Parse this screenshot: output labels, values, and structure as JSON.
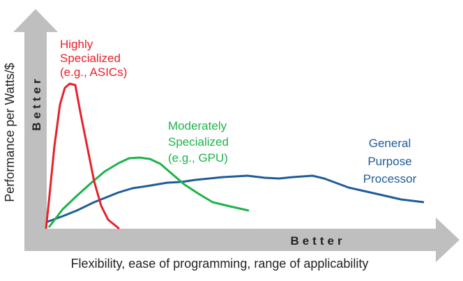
{
  "axes": {
    "y_label": "Performance per Watts/$",
    "x_label": "Flexibility, ease of programming, range of applicability",
    "y_better": "Better",
    "x_better": "Better",
    "arrow_color": "#bfbfbf"
  },
  "series": [
    {
      "name": "highly",
      "lines": [
        "Highly",
        "Specialized",
        "(e.g., ASICs)"
      ],
      "color": "#e8202a"
    },
    {
      "name": "moderately",
      "lines": [
        "Moderately",
        "Specialized",
        "(e.g., GPU)"
      ],
      "color": "#1db34a"
    },
    {
      "name": "general",
      "lines": [
        "General",
        "Purpose",
        "Processor"
      ],
      "color": "#1f5c99"
    }
  ]
}
